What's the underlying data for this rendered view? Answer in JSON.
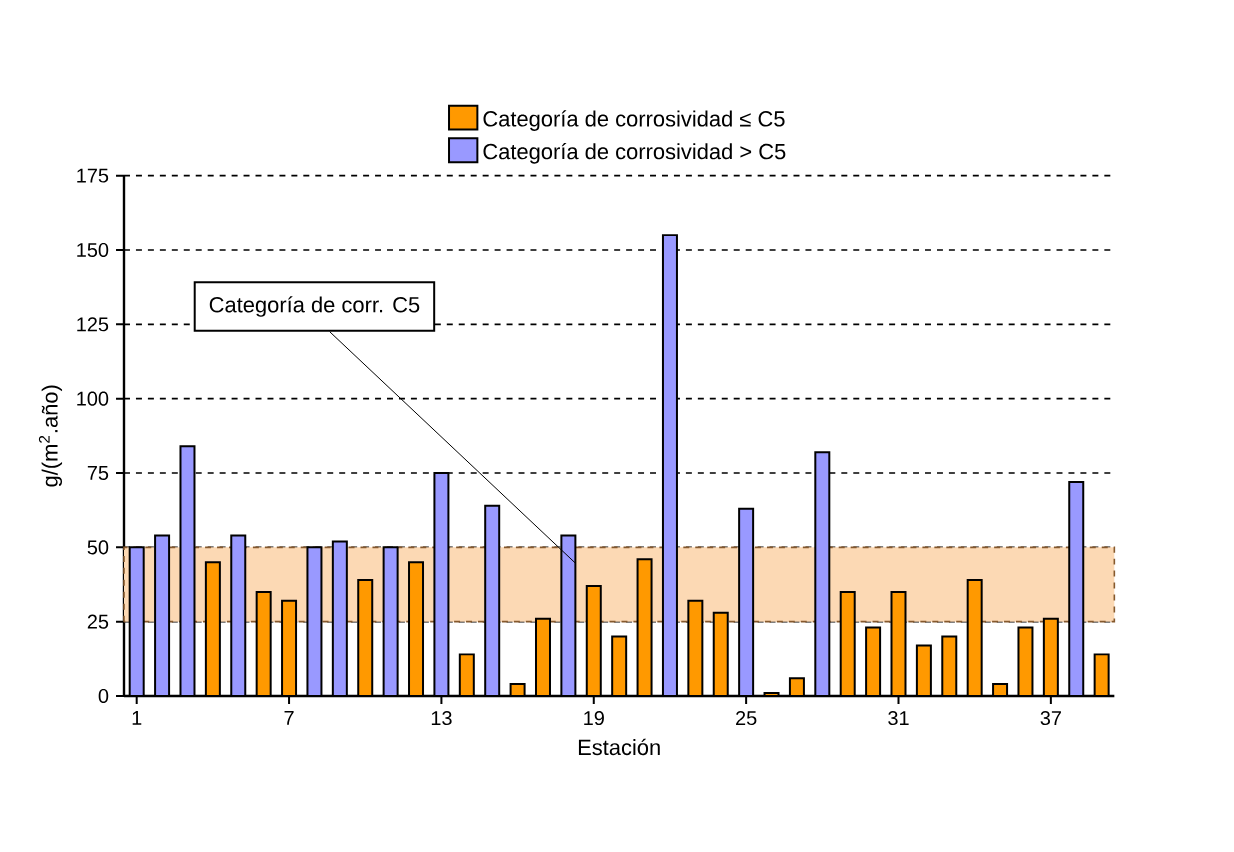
{
  "chart_data": {
    "type": "bar",
    "xlabel": "Estación",
    "ylabel": "g/(m$^{2}$.año)",
    "x": [
      1,
      2,
      3,
      4,
      5,
      6,
      7,
      8,
      9,
      10,
      11,
      12,
      13,
      14,
      15,
      16,
      17,
      18,
      19,
      20,
      21,
      22,
      23,
      24,
      25,
      26,
      27,
      28,
      29,
      30,
      31,
      32,
      33,
      34,
      35,
      36,
      37,
      38,
      39
    ],
    "series": [
      {
        "name": "Categoría de corrosividad ≤ C5",
        "color": "#ff9900",
        "values": [
          null,
          null,
          null,
          45,
          null,
          35,
          32,
          null,
          null,
          39,
          null,
          45,
          null,
          14,
          null,
          4,
          26,
          null,
          37,
          20,
          46,
          null,
          32,
          28,
          null,
          1,
          6,
          null,
          35,
          23,
          35,
          17,
          20,
          39,
          4,
          23,
          26,
          null,
          14
        ]
      },
      {
        "name": "Categoría de corrosividad > C5",
        "color": "#9999ff",
        "values": [
          50,
          54,
          84,
          null,
          54,
          null,
          null,
          50,
          52,
          null,
          50,
          null,
          75,
          null,
          64,
          null,
          null,
          54,
          null,
          null,
          null,
          155,
          null,
          null,
          63,
          null,
          null,
          82,
          null,
          null,
          null,
          null,
          null,
          null,
          null,
          null,
          null,
          72,
          null
        ]
      }
    ],
    "xlim": [
      0.5,
      39.5
    ],
    "xticks": [
      1,
      7,
      13,
      19,
      25,
      31,
      37
    ],
    "ylim": [
      0,
      175
    ],
    "yticks": [
      0,
      25,
      50,
      75,
      100,
      125,
      150,
      175
    ],
    "grid": "y",
    "legend": "top",
    "bands": [
      {
        "axis": "y",
        "from": 25,
        "to": 50,
        "label": "Categoría de corr. C5",
        "color": "#fcd9b4"
      }
    ]
  }
}
